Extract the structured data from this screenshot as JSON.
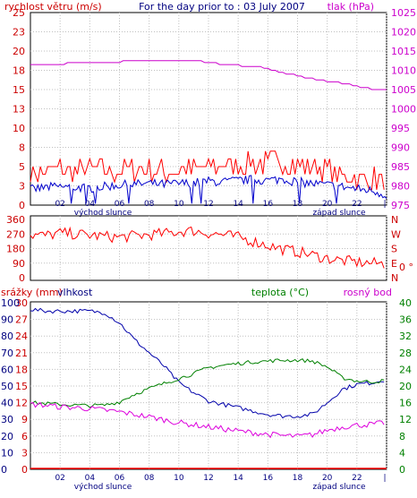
{
  "colors": {
    "frame": "#000000",
    "grid": "#c0c0c0",
    "wind_gust": "#ff0000",
    "wind_speed": "#0000cc",
    "pressure": "#cc00cc",
    "direction": "#ff0000",
    "temperature": "#008000",
    "humidity": "#0000aa",
    "dewpoint": "#dd00dd",
    "precip": "#ff0000",
    "label_red": "#cc0000",
    "label_blue": "#000080",
    "label_magenta": "#cc00cc",
    "label_green": "#008000"
  },
  "header": {
    "wind_label": "rychlost větru (m/s)",
    "title": "For the day prior to : 03 July 2007",
    "pressure_label": "tlak (hPa)"
  },
  "chart_data": [
    {
      "type": "line",
      "title": "For the day prior to : 03 July 2007",
      "x_ticks": [
        "02",
        "04",
        "06",
        "08",
        "10",
        "12",
        "14",
        "16",
        "18",
        "20",
        "22",
        "|"
      ],
      "sunrise_label": "východ slunce",
      "sunset_label": "západ slunce",
      "ylabel_left": "rychlost větru (m/s)",
      "ylabel_right": "tlak (hPa)",
      "y_left_ticks": [
        "25",
        "23",
        "20",
        "18",
        "15",
        "13",
        "10",
        "8",
        "5",
        "3",
        "0"
      ],
      "y_right_ticks": [
        "1025",
        "1020",
        "1015",
        "1010",
        "1005",
        "1000",
        "995",
        "990",
        "985",
        "980",
        "975"
      ],
      "ylim_left": [
        0,
        25
      ],
      "ylim_right": [
        975,
        1025
      ],
      "grid": true,
      "series": [
        {
          "name": "wind_gust",
          "axis": "left",
          "x": [
            0,
            1,
            2,
            3,
            4,
            5,
            6,
            7,
            8,
            9,
            10,
            11,
            12,
            13,
            14,
            15,
            16,
            17,
            18,
            19,
            20,
            21,
            22,
            23,
            24
          ],
          "y": [
            4.2,
            4.4,
            4.6,
            4.3,
            4.8,
            4.2,
            4.5,
            4.6,
            4.8,
            4.4,
            4.7,
            4.5,
            4.9,
            5.2,
            5.4,
            5.5,
            5.3,
            5.7,
            5.1,
            5.0,
            4.4,
            4.0,
            3.6,
            3.4,
            2.9
          ]
        },
        {
          "name": "wind_speed",
          "axis": "left",
          "x": [
            0,
            1,
            2,
            3,
            4,
            5,
            6,
            7,
            8,
            9,
            10,
            11,
            12,
            13,
            14,
            15,
            16,
            17,
            18,
            19,
            20,
            21,
            22,
            23,
            24
          ],
          "y": [
            2.0,
            2.3,
            2.4,
            2.3,
            2.2,
            2.4,
            2.6,
            2.7,
            2.8,
            2.7,
            2.8,
            2.9,
            3.1,
            3.0,
            3.2,
            3.3,
            3.2,
            3.4,
            3.0,
            2.8,
            2.6,
            2.4,
            2.1,
            1.9,
            1.3
          ]
        },
        {
          "name": "pressure",
          "axis": "right",
          "x": [
            0,
            1,
            2,
            3,
            4,
            5,
            6,
            7,
            8,
            9,
            10,
            11,
            12,
            13,
            14,
            15,
            16,
            17,
            18,
            19,
            20,
            21,
            22,
            23,
            24
          ],
          "y": [
            1011.7,
            1011.7,
            1011.7,
            1011.8,
            1011.9,
            1012.2,
            1012.2,
            1012.4,
            1012.6,
            1012.7,
            1012.7,
            1012.5,
            1012.0,
            1011.6,
            1011.3,
            1011.0,
            1010.5,
            1009.4,
            1008.6,
            1007.8,
            1007.2,
            1006.6,
            1005.9,
            1005.2,
            1005.0
          ]
        }
      ]
    },
    {
      "type": "line",
      "x_ticks": [
        "02",
        "04",
        "06",
        "08",
        "10",
        "12",
        "14",
        "16",
        "18",
        "20",
        "22",
        "|"
      ],
      "y_left_ticks": [
        "360",
        "270",
        "180",
        "90",
        "0"
      ],
      "y_right_ticks": [
        "N",
        "W",
        "S",
        "E",
        "N"
      ],
      "right_extra_label": "0 °",
      "ylim": [
        0,
        360
      ],
      "grid": true,
      "series": [
        {
          "name": "direction",
          "x": [
            0,
            1,
            2,
            3,
            4,
            5,
            6,
            7,
            8,
            9,
            10,
            11,
            12,
            13,
            14,
            15,
            16,
            17,
            18,
            19,
            20,
            21,
            22,
            23,
            24
          ],
          "y": [
            265,
            260,
            275,
            270,
            262,
            255,
            250,
            258,
            265,
            272,
            285,
            290,
            275,
            265,
            250,
            225,
            200,
            175,
            160,
            140,
            120,
            105,
            95,
            90,
            85
          ]
        }
      ]
    },
    {
      "type": "line",
      "x_ticks": [
        "02",
        "04",
        "06",
        "08",
        "10",
        "12",
        "14",
        "16",
        "18",
        "20",
        "22",
        "|"
      ],
      "sunrise_label": "východ slunce",
      "sunset_label": "západ slunce",
      "labels": {
        "precip": "srážky (mm)",
        "humidity": "vlhkost",
        "temperature": "teplota (°C)",
        "dewpoint": "rosný bod"
      },
      "y_precip_ticks": [
        "30",
        "27",
        "24",
        "21",
        "18",
        "15",
        "12",
        "9",
        "6",
        "3",
        "0"
      ],
      "y_humidity_ticks": [
        "100",
        "90",
        "80",
        "70",
        "60",
        "50",
        "40",
        "30",
        "20",
        "10",
        "0"
      ],
      "y_right_ticks": [
        "40",
        "36",
        "32",
        "28",
        "24",
        "20",
        "16",
        "12",
        "8",
        "4",
        "0"
      ],
      "ylim_precip": [
        0,
        30
      ],
      "ylim_humidity": [
        0,
        100
      ],
      "ylim_temperature": [
        0,
        40
      ],
      "grid": true,
      "series": [
        {
          "name": "humidity",
          "x": [
            0,
            1,
            2,
            3,
            4,
            5,
            6,
            7,
            8,
            9,
            10,
            11,
            12,
            13,
            14,
            15,
            16,
            17,
            18,
            19,
            20,
            21,
            22,
            23,
            24
          ],
          "y": [
            96,
            95,
            95,
            95,
            95,
            94,
            88,
            78,
            70,
            62,
            52,
            46,
            41,
            39,
            37,
            35,
            33,
            32,
            32,
            33,
            40,
            48,
            51,
            52,
            54
          ]
        },
        {
          "name": "temperature",
          "x": [
            0,
            1,
            2,
            3,
            4,
            5,
            6,
            7,
            8,
            9,
            10,
            11,
            12,
            13,
            14,
            15,
            16,
            17,
            18,
            19,
            20,
            21,
            22,
            23,
            24
          ],
          "y": [
            16.0,
            15.8,
            15.6,
            15.4,
            15.3,
            15.4,
            16.2,
            18.0,
            19.4,
            20.6,
            21.8,
            23.0,
            24.4,
            25.0,
            25.4,
            25.8,
            26.0,
            26.2,
            26.2,
            26.0,
            24.6,
            22.0,
            21.2,
            21.0,
            21.3
          ]
        },
        {
          "name": "dewpoint",
          "x": [
            0,
            1,
            2,
            3,
            4,
            5,
            6,
            7,
            8,
            9,
            10,
            11,
            12,
            13,
            14,
            15,
            16,
            17,
            18,
            19,
            20,
            21,
            22,
            23,
            24
          ],
          "y": [
            15.6,
            15.4,
            15.0,
            14.8,
            14.6,
            14.2,
            13.8,
            13.2,
            12.6,
            11.9,
            11.2,
            10.7,
            10.2,
            9.7,
            9.2,
            8.8,
            8.4,
            8.1,
            7.9,
            8.3,
            9.4,
            10.2,
            10.6,
            10.8,
            11.2
          ]
        },
        {
          "name": "precip",
          "x": [
            0,
            24
          ],
          "y": [
            0,
            0
          ]
        }
      ]
    }
  ]
}
